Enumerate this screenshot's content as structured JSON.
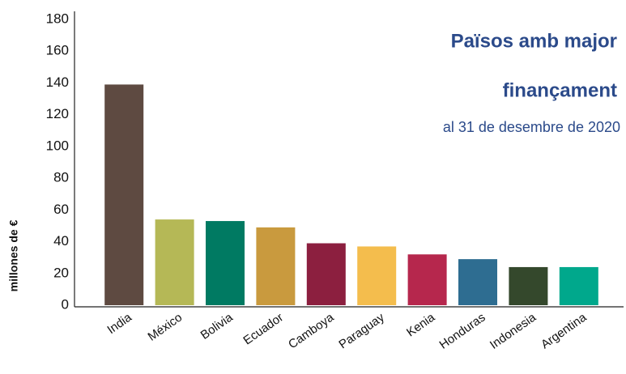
{
  "chart_data": {
    "type": "bar",
    "title": [
      "Països amb major",
      "finançament"
    ],
    "subtitle": "al 31 de desembre de 2020",
    "y_label": "millones de €",
    "categories": [
      "India",
      "México",
      "Bolivia",
      "Ecuador",
      "Camboya",
      "Paraguay",
      "Kenia",
      "Honduras",
      "Indonesia",
      "Argentina"
    ],
    "values": [
      139,
      54,
      53,
      49,
      39,
      37,
      32,
      29,
      24,
      24
    ],
    "colors": [
      "#5e4a41",
      "#b5b856",
      "#007a62",
      "#c99a3e",
      "#8c1f3f",
      "#f4bd4d",
      "#b6274d",
      "#2e6d91",
      "#34482c",
      "#00a88c"
    ],
    "ylim": [
      0,
      180
    ],
    "yticks": [
      0,
      20,
      40,
      60,
      80,
      100,
      120,
      140,
      160,
      180
    ],
    "grid": false
  }
}
